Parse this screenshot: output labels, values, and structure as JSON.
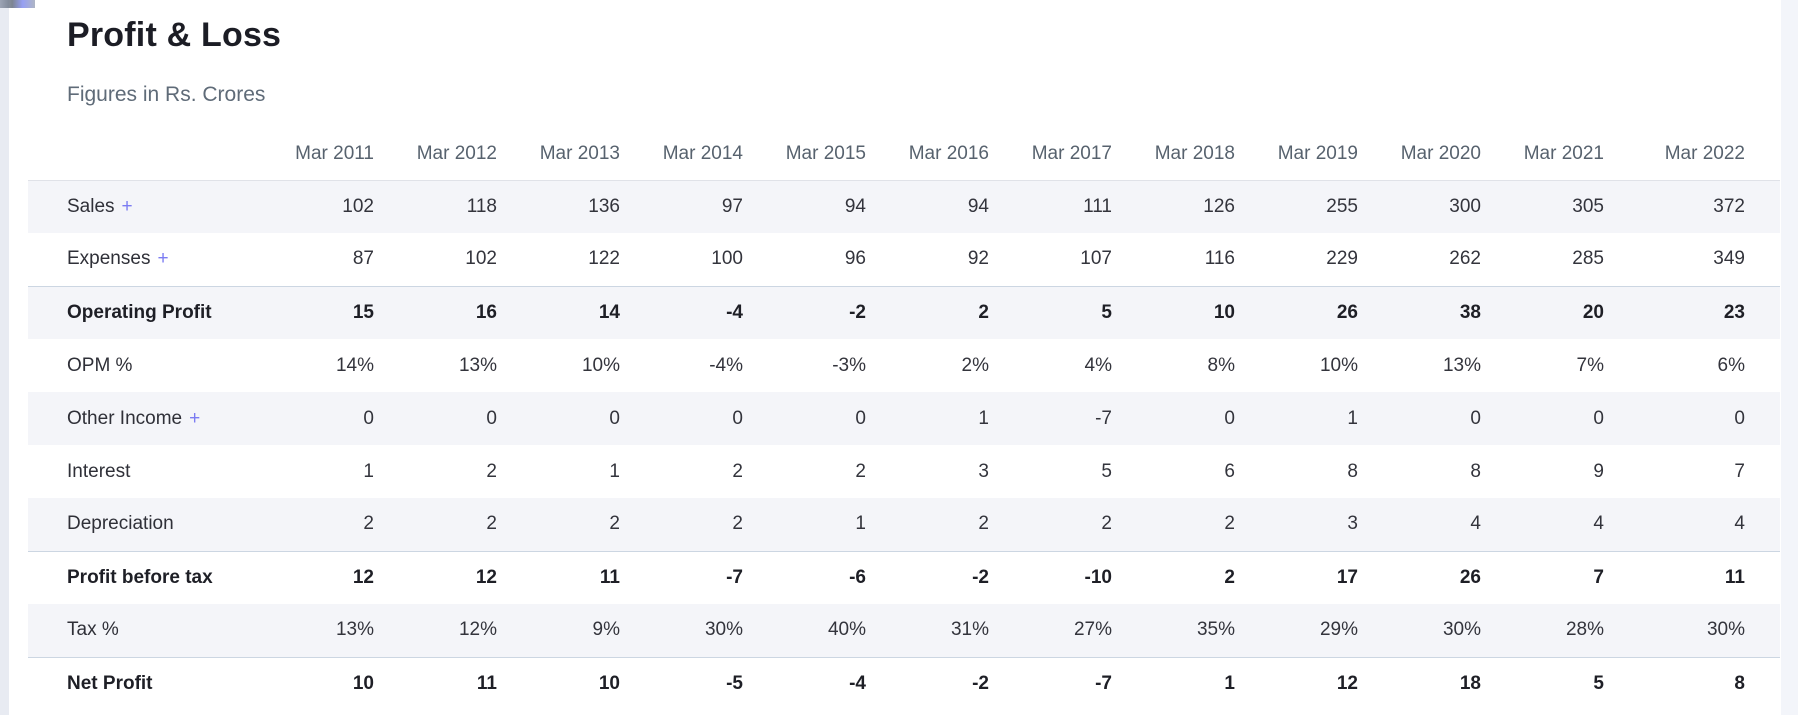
{
  "section": {
    "title": "Profit & Loss",
    "subtitle": "Figures in Rs. Crores"
  },
  "table": {
    "expand_symbol": "+",
    "columns": [
      "Mar 2011",
      "Mar 2012",
      "Mar 2013",
      "Mar 2014",
      "Mar 2015",
      "Mar 2016",
      "Mar 2017",
      "Mar 2018",
      "Mar 2019",
      "Mar 2020",
      "Mar 2021",
      "Mar 2022"
    ],
    "rows": [
      {
        "label": "Sales",
        "expandable": true,
        "strong": false,
        "values": [
          "102",
          "118",
          "136",
          "97",
          "94",
          "94",
          "111",
          "126",
          "255",
          "300",
          "305",
          "372"
        ]
      },
      {
        "label": "Expenses",
        "expandable": true,
        "strong": false,
        "values": [
          "87",
          "102",
          "122",
          "100",
          "96",
          "92",
          "107",
          "116",
          "229",
          "262",
          "285",
          "349"
        ]
      },
      {
        "label": "Operating Profit",
        "expandable": false,
        "strong": true,
        "values": [
          "15",
          "16",
          "14",
          "-4",
          "-2",
          "2",
          "5",
          "10",
          "26",
          "38",
          "20",
          "23"
        ]
      },
      {
        "label": "OPM %",
        "expandable": false,
        "strong": false,
        "values": [
          "14%",
          "13%",
          "10%",
          "-4%",
          "-3%",
          "2%",
          "4%",
          "8%",
          "10%",
          "13%",
          "7%",
          "6%"
        ]
      },
      {
        "label": "Other Income",
        "expandable": true,
        "strong": false,
        "values": [
          "0",
          "0",
          "0",
          "0",
          "0",
          "1",
          "-7",
          "0",
          "1",
          "0",
          "0",
          "0"
        ]
      },
      {
        "label": "Interest",
        "expandable": false,
        "strong": false,
        "values": [
          "1",
          "2",
          "1",
          "2",
          "2",
          "3",
          "5",
          "6",
          "8",
          "8",
          "9",
          "7"
        ]
      },
      {
        "label": "Depreciation",
        "expandable": false,
        "strong": false,
        "values": [
          "2",
          "2",
          "2",
          "2",
          "1",
          "2",
          "2",
          "2",
          "3",
          "4",
          "4",
          "4"
        ]
      },
      {
        "label": "Profit before tax",
        "expandable": false,
        "strong": true,
        "values": [
          "12",
          "12",
          "11",
          "-7",
          "-6",
          "-2",
          "-10",
          "2",
          "17",
          "26",
          "7",
          "11"
        ]
      },
      {
        "label": "Tax %",
        "expandable": false,
        "strong": false,
        "values": [
          "13%",
          "12%",
          "9%",
          "30%",
          "40%",
          "31%",
          "27%",
          "35%",
          "29%",
          "30%",
          "28%",
          "30%"
        ]
      },
      {
        "label": "Net Profit",
        "expandable": false,
        "strong": true,
        "values": [
          "10",
          "11",
          "10",
          "-5",
          "-4",
          "-2",
          "-7",
          "1",
          "12",
          "18",
          "5",
          "8"
        ]
      }
    ]
  },
  "colors": {
    "accent_plus": "#7b7cf2",
    "stripe": "#f4f5f9",
    "strong_border": "#ccd6e2",
    "header_text": "#57626e",
    "title_text": "#1c1d25",
    "left_gutter": "#e8ebf2",
    "right_gutter": "#f3f5fa"
  }
}
